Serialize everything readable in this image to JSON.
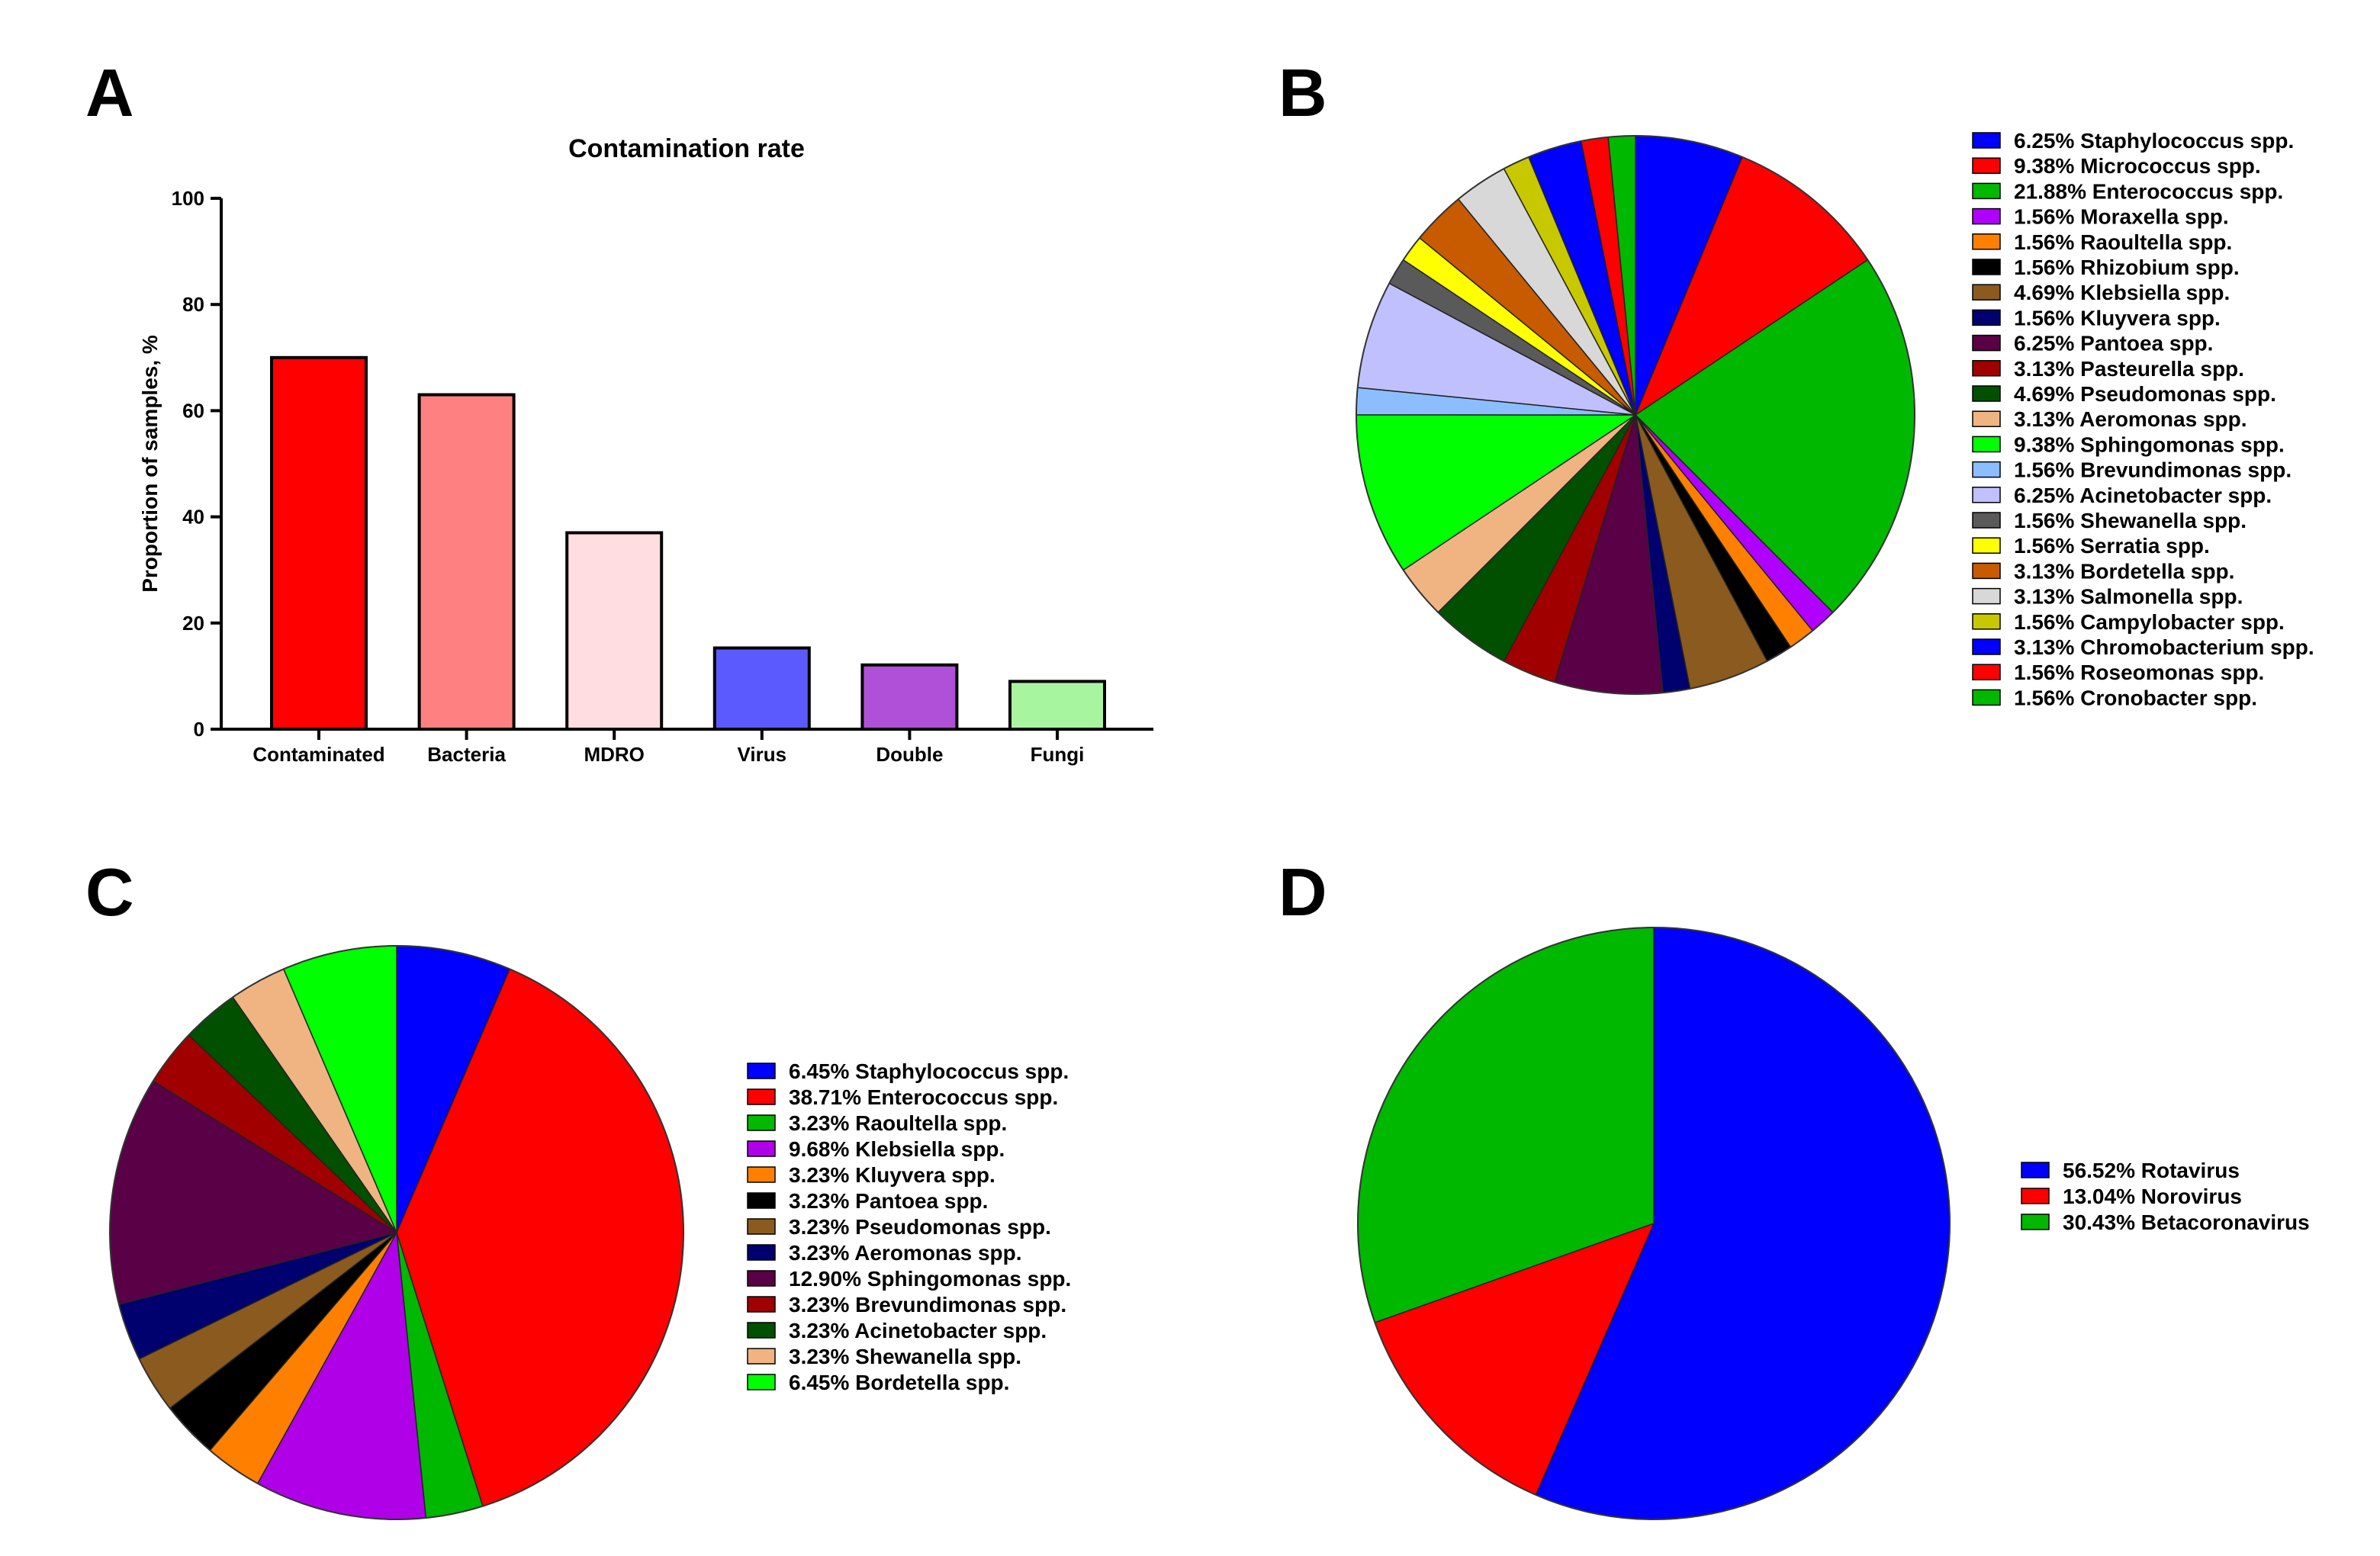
{
  "panels": [
    "A",
    "B",
    "C",
    "D"
  ],
  "chart_data": [
    {
      "id": "A",
      "type": "bar",
      "title": "Contamination rate",
      "xlabel": "",
      "ylabel": "Proportion of samples, %",
      "ylim": [
        0,
        100
      ],
      "yticks": [
        0,
        20,
        40,
        60,
        80,
        100
      ],
      "categories": [
        "Contaminated",
        "Bacteria",
        "MDRO",
        "Virus",
        "Double",
        "Fungi"
      ],
      "values": [
        70,
        63,
        37,
        15.3,
        12.1,
        9
      ],
      "colors": [
        "#ff0000",
        "#ff8080",
        "#ffdde0",
        "#5a5aff",
        "#b050d8",
        "#a8f5a0"
      ]
    },
    {
      "id": "B",
      "type": "pie",
      "title": "",
      "labels": [
        "6.25%  Staphylococcus spp.",
        "9.38%  Micrococcus spp.",
        "21.88%  Enterococcus spp.",
        "1.56%  Moraxella spp.",
        "1.56%  Raoultella spp.",
        "1.56%  Rhizobium spp.",
        "4.69%  Klebsiella spp.",
        "1.56%  Kluyvera spp.",
        "6.25%  Pantoea spp.",
        "3.13%  Pasteurella spp.",
        "4.69%  Pseudomonas spp.",
        "3.13%  Aeromonas spp.",
        "9.38%  Sphingomonas spp.",
        "1.56%  Brevundimonas spp.",
        "6.25%  Acinetobacter spp.",
        "1.56%  Shewanella spp.",
        "1.56%  Serratia spp.",
        "3.13%  Bordetella spp.",
        "3.13%  Salmonella spp.",
        "1.56%  Campylobacter spp.",
        "3.13%  Chromobacterium spp.",
        "1.56%  Roseomonas spp.",
        "1.56%  Cronobacter spp."
      ],
      "values": [
        6.25,
        9.38,
        21.88,
        1.56,
        1.56,
        1.56,
        4.69,
        1.56,
        6.25,
        3.13,
        4.69,
        3.13,
        9.38,
        1.56,
        6.25,
        1.56,
        1.56,
        3.13,
        3.13,
        1.56,
        3.13,
        1.56,
        1.56
      ],
      "colors": [
        "#0000ff",
        "#ff0000",
        "#00b800",
        "#b000ff",
        "#ff8000",
        "#000000",
        "#8b5a1e",
        "#00006e",
        "#5a0046",
        "#a00000",
        "#005000",
        "#f0b482",
        "#00ff00",
        "#8cbeff",
        "#c0c0ff",
        "#5a5a5a",
        "#ffff00",
        "#c85a00",
        "#d8d8d8",
        "#c8c800",
        "#0000ff",
        "#ff0000",
        "#00b800"
      ]
    },
    {
      "id": "C",
      "type": "pie",
      "title": "",
      "labels": [
        "6.45%  Staphylococcus spp.",
        "38.71%  Enterococcus spp.",
        "3.23%  Raoultella spp.",
        "9.68%  Klebsiella spp.",
        "3.23%  Kluyvera spp.",
        "3.23%  Pantoea spp.",
        "3.23%  Pseudomonas spp.",
        "3.23%  Aeromonas spp.",
        "12.90%  Sphingomonas spp.",
        "3.23%  Brevundimonas spp.",
        "3.23%  Acinetobacter spp.",
        "3.23%  Shewanella spp.",
        "6.45%  Bordetella spp."
      ],
      "values": [
        6.45,
        38.71,
        3.23,
        9.68,
        3.23,
        3.23,
        3.23,
        3.23,
        12.9,
        3.23,
        3.23,
        3.23,
        6.45
      ],
      "colors": [
        "#0000ff",
        "#ff0000",
        "#00b800",
        "#b000e8",
        "#ff8000",
        "#000000",
        "#8b5a1e",
        "#00006e",
        "#5a0046",
        "#a00000",
        "#005000",
        "#f0b482",
        "#00ff00"
      ]
    },
    {
      "id": "D",
      "type": "pie",
      "title": "",
      "labels": [
        "56.52%  Rotavirus",
        "13.04%  Norovirus",
        "30.43%  Betacoronavirus"
      ],
      "values": [
        56.52,
        13.04,
        30.43
      ],
      "colors": [
        "#0000ff",
        "#ff0000",
        "#00b800"
      ]
    }
  ]
}
